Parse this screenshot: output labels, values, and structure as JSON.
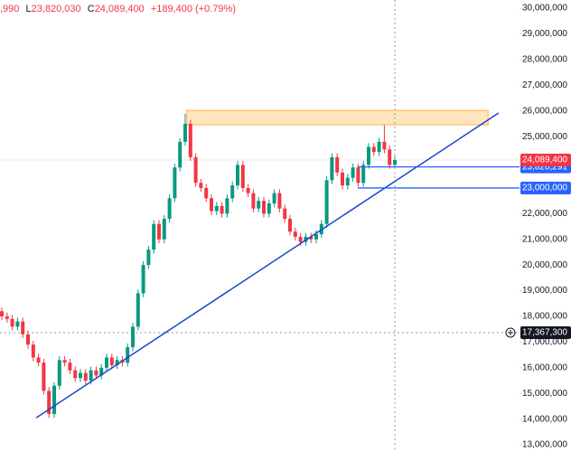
{
  "chart_data": {
    "type": "candlestick",
    "legend_text": {
      "open_value": ",990",
      "low": {
        "key": "L",
        "value": "23,820,030"
      },
      "close": {
        "key": "C",
        "value": "24,089,400"
      },
      "change": "+189,400 (+0.79%)"
    },
    "up_color": "#089981",
    "down_color": "#f23645",
    "grid": false,
    "ylim": [
      12720000,
      30320000
    ],
    "yticks": [
      {
        "value": 30000000,
        "label": "30,000,000"
      },
      {
        "value": 29000000,
        "label": "29,000,000"
      },
      {
        "value": 28000000,
        "label": "28,000,000"
      },
      {
        "value": 27000000,
        "label": "27,000,000"
      },
      {
        "value": 26000000,
        "label": "26,000,000"
      },
      {
        "value": 25000000,
        "label": "25,000,000"
      },
      {
        "value": 22000000,
        "label": "22,000,000"
      },
      {
        "value": 21000000,
        "label": "21,000,000"
      },
      {
        "value": 20000000,
        "label": "20,000,000"
      },
      {
        "value": 19000000,
        "label": "19,000,000"
      },
      {
        "value": 18000000,
        "label": "18,000,000"
      },
      {
        "value": 17000000,
        "label": "17,000,000"
      },
      {
        "value": 16000000,
        "label": "16,000,000"
      },
      {
        "value": 15000000,
        "label": "15,000,000"
      },
      {
        "value": 14000000,
        "label": "14,000,000"
      },
      {
        "value": 13000000,
        "label": "13,000,000"
      }
    ],
    "open": [
      18200000,
      18000000,
      17900000,
      17600000,
      17800000,
      17300000,
      16900000,
      16400000,
      16200000,
      15100000,
      14200000,
      15300000,
      16300000,
      16200000,
      15900000,
      15600000,
      15800000,
      15500000,
      15900000,
      15700000,
      16000000,
      16400000,
      16100000,
      16300000,
      16200000,
      16800000,
      17600000,
      18900000,
      20000000,
      20600000,
      21600000,
      21000000,
      21800000,
      22600000,
      23800000,
      24800000,
      25500000,
      24200000,
      23200000,
      23000000,
      22600000,
      22100000,
      22300000,
      22000000,
      22600000,
      23100000,
      23900000,
      23000000,
      22800000,
      22200000,
      22500000,
      22000000,
      22400000,
      22800000,
      22200000,
      21800000,
      21300000,
      21100000,
      20900000,
      21100000,
      21000000,
      21200000,
      21600000,
      23300000,
      24200000,
      23600000,
      23100000,
      23400000,
      23800000,
      23200000,
      23900000,
      24600000,
      24400000,
      24800000,
      24500000,
      23900990
    ],
    "high": [
      18350000,
      18150000,
      18050000,
      17950000,
      17950000,
      17450000,
      17050000,
      16550000,
      16350000,
      15250000,
      15450000,
      16450000,
      16450000,
      16350000,
      16050000,
      15950000,
      15950000,
      16050000,
      16050000,
      16150000,
      16550000,
      16550000,
      16450000,
      16450000,
      16950000,
      17750000,
      19050000,
      20150000,
      20750000,
      21750000,
      21750000,
      21950000,
      22750000,
      23950000,
      24950000,
      25900000,
      25650000,
      24350000,
      23350000,
      23150000,
      22750000,
      22450000,
      22450000,
      22750000,
      23250000,
      24050000,
      24050000,
      23150000,
      22950000,
      22650000,
      22650000,
      22550000,
      22950000,
      22950000,
      22350000,
      21950000,
      21450000,
      21250000,
      21250000,
      21250000,
      21350000,
      21750000,
      23450000,
      24350000,
      24350000,
      23750000,
      23550000,
      23950000,
      23950000,
      24050000,
      24750000,
      24750000,
      24950000,
      25450000,
      24650000,
      24250000
    ],
    "low": [
      17850000,
      17750000,
      17450000,
      17450000,
      17150000,
      16750000,
      16250000,
      16050000,
      14950000,
      14050000,
      14050000,
      15150000,
      16050000,
      15750000,
      15450000,
      15450000,
      15350000,
      15350000,
      15550000,
      15550000,
      15850000,
      15950000,
      15950000,
      16050000,
      16050000,
      16650000,
      17450000,
      18750000,
      19850000,
      20450000,
      20850000,
      20850000,
      21650000,
      22450000,
      23650000,
      24650000,
      24050000,
      23050000,
      22850000,
      22450000,
      21950000,
      21950000,
      21850000,
      21850000,
      22450000,
      22950000,
      22850000,
      22650000,
      22050000,
      22050000,
      21850000,
      21850000,
      22250000,
      22050000,
      21650000,
      21150000,
      20950000,
      20750000,
      20750000,
      20850000,
      20850000,
      21050000,
      21450000,
      23150000,
      23450000,
      22950000,
      22950000,
      23250000,
      23050000,
      23050000,
      23750000,
      24250000,
      24250000,
      24350000,
      23750000,
      23820030
    ],
    "close": [
      18000000,
      17900000,
      17600000,
      17800000,
      17300000,
      16900000,
      16400000,
      16200000,
      15100000,
      14200000,
      15300000,
      16300000,
      16200000,
      15900000,
      15600000,
      15800000,
      15500000,
      15900000,
      15700000,
      16000000,
      16400000,
      16100000,
      16300000,
      16200000,
      16800000,
      17600000,
      18900000,
      20000000,
      20600000,
      21600000,
      21000000,
      21800000,
      22600000,
      23800000,
      24800000,
      25500000,
      24200000,
      23200000,
      23000000,
      22600000,
      22100000,
      22300000,
      22000000,
      22600000,
      23100000,
      23900000,
      23000000,
      22800000,
      22200000,
      22500000,
      22000000,
      22400000,
      22800000,
      22200000,
      21800000,
      21300000,
      21100000,
      20900000,
      21100000,
      21000000,
      21200000,
      21600000,
      23300000,
      24200000,
      23600000,
      23100000,
      23400000,
      23800000,
      23200000,
      23900000,
      24600000,
      24400000,
      24800000,
      24500000,
      23900000,
      24089400
    ],
    "rectangle": {
      "x": [
        35.3,
        92.8
      ],
      "y": [
        25460000,
        26020000
      ],
      "color": "#ff9800"
    },
    "trendline": {
      "x": [
        6.55,
        94.8
      ],
      "y": [
        14050000,
        25920000
      ],
      "color": "#1848cc"
    },
    "horizontal_rays": [
      {
        "x": 67.9,
        "value": 23820291,
        "label": "23,820,291",
        "color": "#2962ff"
      },
      {
        "x": 67.9,
        "value": 23000000,
        "label": "23,000,000",
        "color": "#2962ff"
      }
    ],
    "last_price": {
      "value": 24089400,
      "label": "24,089,400",
      "color": "#f23645"
    },
    "crosshair": {
      "x": 75,
      "value": 17367300,
      "label": "17,367,300"
    }
  }
}
